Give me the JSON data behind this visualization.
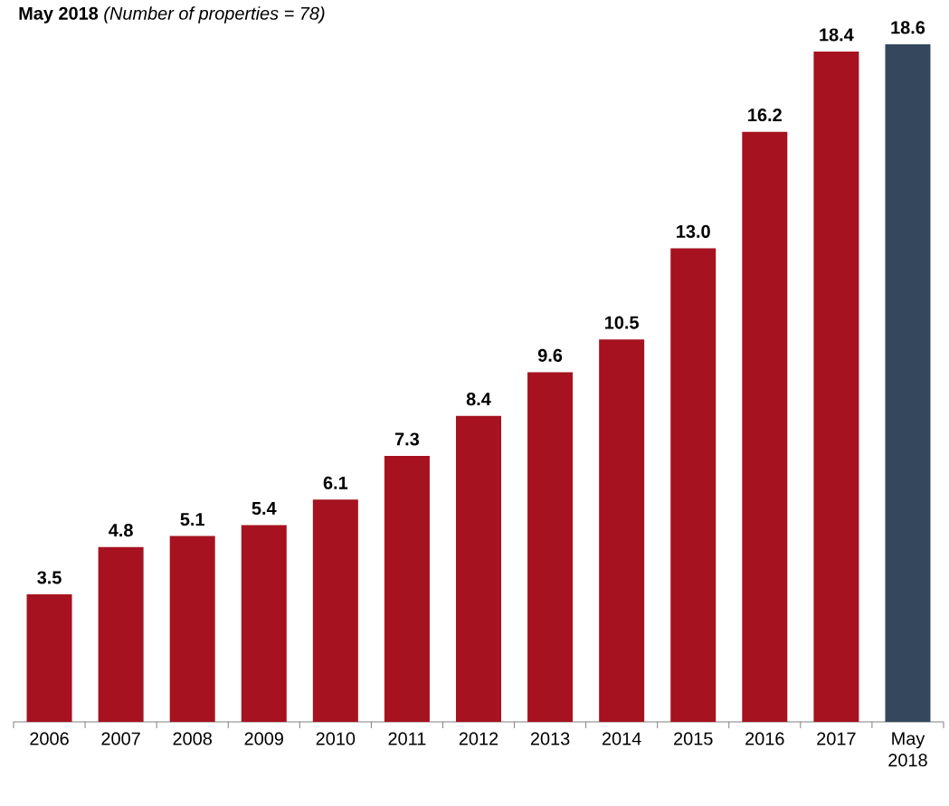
{
  "chart_data": {
    "type": "bar",
    "title": "**May 2018** *(Number of properties = 78)*",
    "categories": [
      "2006",
      "2007",
      "2008",
      "2009",
      "2010",
      "2011",
      "2012",
      "2013",
      "2014",
      "2015",
      "2016",
      "2017",
      "May 2018"
    ],
    "values": [
      3.5,
      4.8,
      5.1,
      5.4,
      6.1,
      7.3,
      8.4,
      9.6,
      10.5,
      13.0,
      16.2,
      18.4,
      18.6
    ],
    "value_labels": [
      "3.5",
      "4.8",
      "5.1",
      "5.4",
      "6.1",
      "7.3",
      "8.4",
      "9.6",
      "10.5",
      "13.0",
      "16.2",
      "18.4",
      "18.6"
    ],
    "colors": [
      "#a6121f",
      "#a6121f",
      "#a6121f",
      "#a6121f",
      "#a6121f",
      "#a6121f",
      "#a6121f",
      "#a6121f",
      "#a6121f",
      "#a6121f",
      "#a6121f",
      "#a6121f",
      "#34475c"
    ]
  }
}
